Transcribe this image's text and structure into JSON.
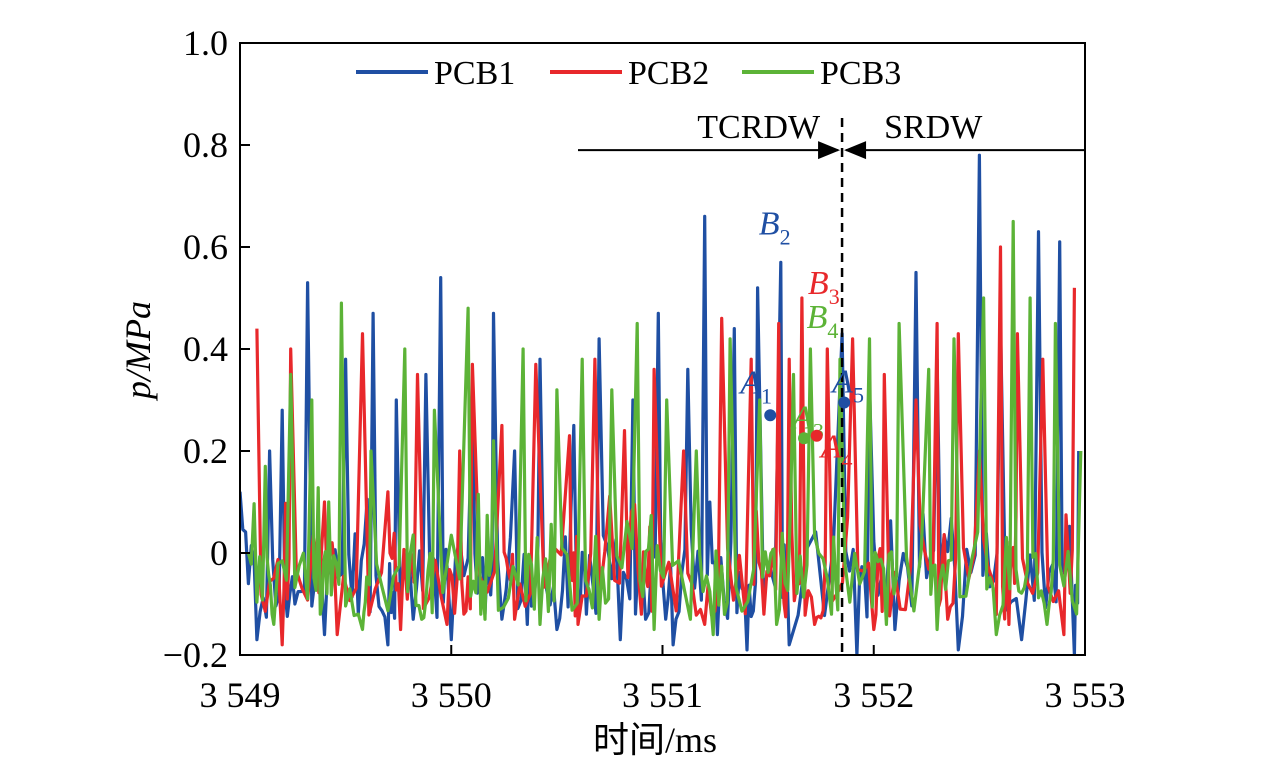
{
  "chart_data": {
    "type": "line",
    "xlabel": "时间/ms",
    "ylabel": "p/MPa",
    "xlim": [
      3549,
      3553
    ],
    "ylim": [
      -0.2,
      1.0
    ],
    "x_ticks": [
      3549,
      3550,
      3551,
      3552,
      3553
    ],
    "x_tick_labels": [
      "3 549",
      "3 550",
      "3 551",
      "3 552",
      "3 553"
    ],
    "y_ticks": [
      -0.2,
      0,
      0.2,
      0.4,
      0.6,
      0.8,
      1.0
    ],
    "y_tick_labels": [
      "−0.2",
      "0",
      "0.2",
      "0.4",
      "0.6",
      "0.8",
      "1.0"
    ],
    "legend_position": "top",
    "series": [
      {
        "name": "PCB1",
        "color": "#1f4fa3",
        "peaks": [
          [
            3549.0,
            0.12
          ],
          [
            3549.14,
            0.2
          ],
          [
            3549.2,
            0.28
          ],
          [
            3549.32,
            0.53
          ],
          [
            3549.5,
            0.38
          ],
          [
            3549.63,
            0.47
          ],
          [
            3549.74,
            0.3
          ],
          [
            3549.88,
            0.35
          ],
          [
            3549.95,
            0.54
          ],
          [
            3550.1,
            0.3
          ],
          [
            3550.2,
            0.47
          ],
          [
            3550.3,
            0.2
          ],
          [
            3550.42,
            0.38
          ],
          [
            3550.58,
            0.25
          ],
          [
            3550.7,
            0.42
          ],
          [
            3550.86,
            0.3
          ],
          [
            3550.98,
            0.47
          ],
          [
            3551.12,
            0.36
          ],
          [
            3551.2,
            0.66
          ],
          [
            3551.34,
            0.44
          ],
          [
            3551.45,
            0.52
          ],
          [
            3551.56,
            0.57
          ],
          [
            3551.85,
            0.43
          ],
          [
            3551.98,
            0.33
          ],
          [
            3552.2,
            0.55
          ],
          [
            3552.3,
            0.38
          ],
          [
            3552.5,
            0.78
          ],
          [
            3552.6,
            0.45
          ],
          [
            3552.78,
            0.63
          ],
          [
            3552.88,
            0.61
          ],
          [
            3552.97,
            0.2
          ]
        ],
        "troughs": [
          [
            3549.08,
            -0.17
          ],
          [
            3549.26,
            -0.1
          ],
          [
            3549.4,
            -0.16
          ],
          [
            3549.56,
            -0.12
          ],
          [
            3549.7,
            -0.18
          ],
          [
            3549.82,
            -0.13
          ],
          [
            3550.0,
            -0.17
          ],
          [
            3550.16,
            -0.12
          ],
          [
            3550.36,
            -0.14
          ],
          [
            3550.5,
            -0.15
          ],
          [
            3550.64,
            -0.12
          ],
          [
            3550.8,
            -0.17
          ],
          [
            3550.92,
            -0.13
          ],
          [
            3551.05,
            -0.18
          ],
          [
            3551.26,
            -0.16
          ],
          [
            3551.4,
            -0.19
          ],
          [
            3551.6,
            -0.18
          ],
          [
            3551.92,
            -0.2
          ],
          [
            3552.1,
            -0.15
          ],
          [
            3552.4,
            -0.19
          ],
          [
            3552.7,
            -0.17
          ],
          [
            3552.95,
            -0.2
          ]
        ]
      },
      {
        "name": "PCB2",
        "color": "#e8282b",
        "peaks": [
          [
            3549.08,
            0.44
          ],
          [
            3549.24,
            0.4
          ],
          [
            3549.4,
            0.1
          ],
          [
            3549.58,
            0.43
          ],
          [
            3549.7,
            0.12
          ],
          [
            3549.84,
            0.35
          ],
          [
            3550.04,
            0.2
          ],
          [
            3550.1,
            0.37
          ],
          [
            3550.24,
            0.25
          ],
          [
            3550.4,
            0.37
          ],
          [
            3550.56,
            0.23
          ],
          [
            3550.68,
            0.38
          ],
          [
            3550.82,
            0.24
          ],
          [
            3550.96,
            0.36
          ],
          [
            3551.1,
            0.2
          ],
          [
            3551.28,
            0.46
          ],
          [
            3551.42,
            0.38
          ],
          [
            3551.55,
            0.45
          ],
          [
            3551.6,
            0.38
          ],
          [
            3551.66,
            0.5
          ],
          [
            3551.78,
            0.4
          ],
          [
            3551.9,
            0.42
          ],
          [
            3552.05,
            0.35
          ],
          [
            3552.2,
            0.3
          ],
          [
            3552.3,
            0.45
          ],
          [
            3552.4,
            0.43
          ],
          [
            3552.5,
            0.2
          ],
          [
            3552.6,
            0.6
          ],
          [
            3552.68,
            0.43
          ],
          [
            3552.8,
            0.38
          ],
          [
            3552.95,
            0.52
          ]
        ],
        "troughs": [
          [
            3549.2,
            -0.18
          ],
          [
            3549.46,
            -0.16
          ],
          [
            3549.76,
            -0.15
          ],
          [
            3549.98,
            -0.14
          ],
          [
            3550.3,
            -0.13
          ],
          [
            3550.6,
            -0.14
          ],
          [
            3550.9,
            -0.12
          ],
          [
            3551.2,
            -0.14
          ],
          [
            3551.48,
            -0.12
          ],
          [
            3551.72,
            -0.14
          ],
          [
            3552.0,
            -0.15
          ],
          [
            3552.35,
            -0.13
          ],
          [
            3552.64,
            -0.14
          ],
          [
            3552.9,
            -0.16
          ]
        ]
      },
      {
        "name": "PCB3",
        "color": "#5cb337",
        "peaks": [
          [
            3549.04,
            0.0
          ],
          [
            3549.12,
            0.17
          ],
          [
            3549.24,
            0.35
          ],
          [
            3549.34,
            0.3
          ],
          [
            3549.42,
            0.1
          ],
          [
            3549.48,
            0.49
          ],
          [
            3549.62,
            0.2
          ],
          [
            3549.78,
            0.4
          ],
          [
            3549.92,
            0.28
          ],
          [
            3550.08,
            0.48
          ],
          [
            3550.2,
            0.22
          ],
          [
            3550.34,
            0.4
          ],
          [
            3550.5,
            0.32
          ],
          [
            3550.62,
            0.38
          ],
          [
            3550.76,
            0.32
          ],
          [
            3550.88,
            0.45
          ],
          [
            3551.02,
            0.3
          ],
          [
            3551.16,
            0.2
          ],
          [
            3551.32,
            0.42
          ],
          [
            3551.46,
            0.3
          ],
          [
            3551.62,
            0.35
          ],
          [
            3551.7,
            0.4
          ],
          [
            3551.84,
            0.38
          ],
          [
            3551.98,
            0.42
          ],
          [
            3552.12,
            0.45
          ],
          [
            3552.26,
            0.36
          ],
          [
            3552.38,
            0.42
          ],
          [
            3552.52,
            0.5
          ],
          [
            3552.66,
            0.65
          ],
          [
            3552.74,
            0.5
          ],
          [
            3552.86,
            0.45
          ],
          [
            3552.98,
            0.2
          ]
        ],
        "troughs": [
          [
            3549.16,
            -0.14
          ],
          [
            3549.38,
            -0.12
          ],
          [
            3549.58,
            -0.15
          ],
          [
            3549.86,
            -0.13
          ],
          [
            3550.14,
            -0.12
          ],
          [
            3550.42,
            -0.14
          ],
          [
            3550.7,
            -0.13
          ],
          [
            3550.96,
            -0.15
          ],
          [
            3551.24,
            -0.16
          ],
          [
            3551.54,
            -0.14
          ],
          [
            3551.8,
            -0.12
          ],
          [
            3552.06,
            -0.14
          ],
          [
            3552.3,
            -0.15
          ],
          [
            3552.58,
            -0.16
          ],
          [
            3552.82,
            -0.14
          ]
        ]
      }
    ],
    "markers": [
      {
        "label": "A",
        "sub": "1",
        "x": 3551.51,
        "y": 0.27,
        "color": "#1f4fa3"
      },
      {
        "label": "A",
        "sub": "3",
        "x": 3551.67,
        "y": 0.225,
        "color": "#5cb337"
      },
      {
        "label": "A",
        "sub": "4",
        "x": 3551.73,
        "y": 0.23,
        "color": "#e8282b"
      },
      {
        "label": "A",
        "sub": "5",
        "x": 3551.86,
        "y": 0.295,
        "color": "#1f4fa3"
      }
    ],
    "peak_labels": [
      {
        "label": "B",
        "sub": "2",
        "x": 3551.56,
        "y": 0.57,
        "color": "#1f4fa3"
      },
      {
        "label": "B",
        "sub": "3",
        "x": 3551.66,
        "y": 0.5,
        "color": "#e8282b"
      },
      {
        "label": "B",
        "sub": "4",
        "x": 3551.72,
        "y": 0.41,
        "color": "#5cb337"
      }
    ],
    "regions": [
      {
        "label": "TCRDW",
        "from": 3550.6,
        "to": 3551.85
      },
      {
        "label": "SRDW",
        "from": 3551.85,
        "to": 3553.0
      }
    ],
    "boundary_x": 3551.85,
    "region_arrow_y": 0.79
  }
}
